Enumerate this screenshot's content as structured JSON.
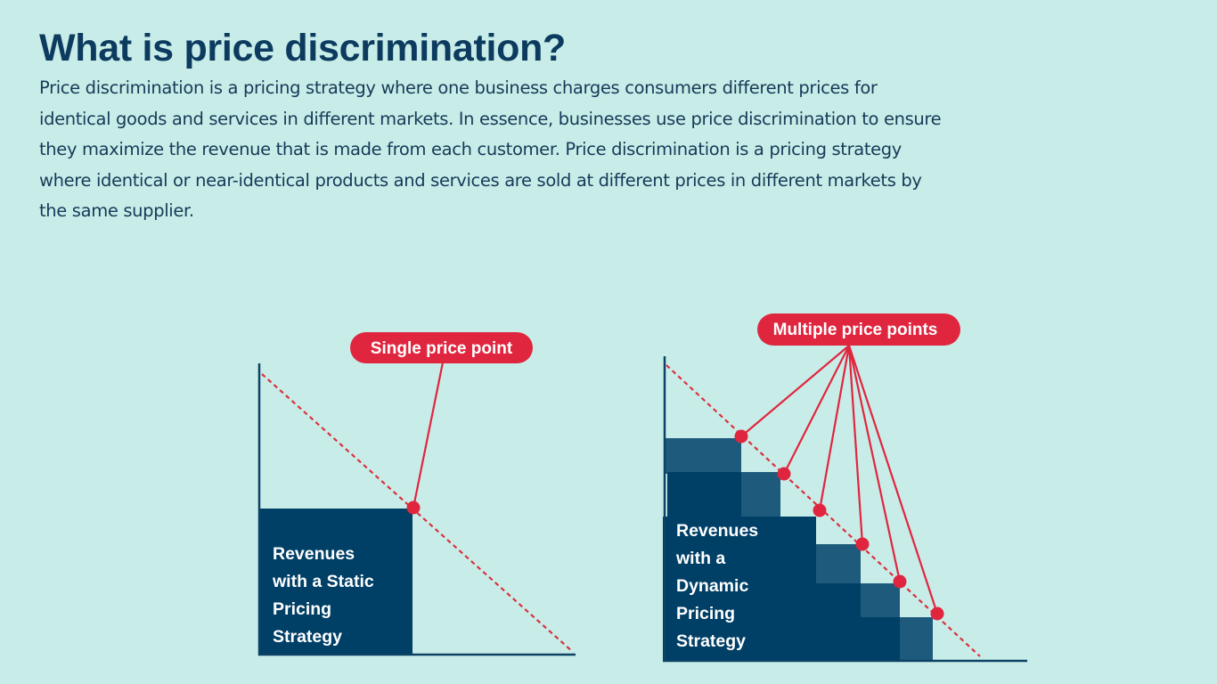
{
  "title": "What is price discrimination?",
  "body_lines": [
    "Price discrimination is a pricing strategy where one business charges consumers different prices for",
    "identical goods and services in different markets. In essence, businesses use price discrimination to ensure",
    "they maximize the revenue that is made from each customer. Price discrimination is a pricing strategy",
    "where identical or near-identical products and services are sold at different prices in different markets by",
    "the same supplier."
  ],
  "static_diagram": {
    "label": "Single price point",
    "box_lines": [
      "Revenues",
      "with a Static",
      "Pricing",
      "Strategy"
    ]
  },
  "dynamic_diagram": {
    "label": "Multiple price points",
    "box_lines": [
      "Revenues",
      "with a",
      "Dynamic",
      "Pricing",
      "Strategy"
    ],
    "price_point_count": 6
  },
  "colors": {
    "background": "#c8ede8",
    "navy": "#003f66",
    "steel": "#1e5a7b",
    "red": "#e0263f"
  }
}
